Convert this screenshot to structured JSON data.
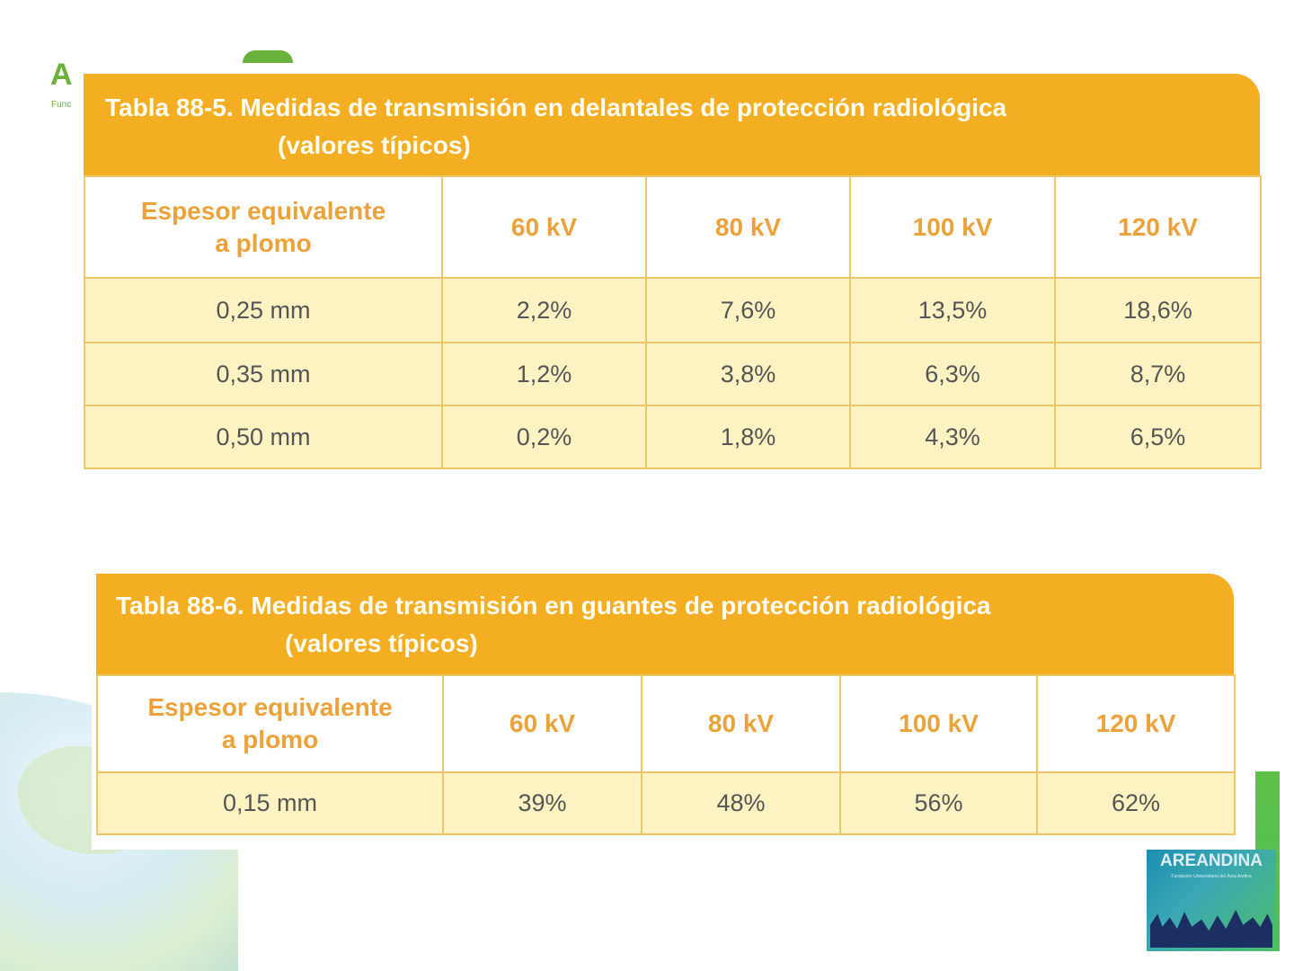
{
  "branding": {
    "top_logo_letter": "A",
    "top_logo_text": "Func",
    "bottom_logo_name": "AREANDINA",
    "bottom_logo_subtitle": "Fundación Universitaria del Área Andina"
  },
  "table1": {
    "title_line1": "Tabla 88-5.  Medidas de transmisión en delantales de protección radiológica",
    "title_line2": "(valores típicos)",
    "headers": [
      "Espesor equivalente a plomo",
      "60 kV",
      "80 kV",
      "100 kV",
      "120 kV"
    ],
    "header_first_line1": "Espesor equivalente",
    "header_first_line2": "a plomo",
    "rows": [
      [
        "0,25 mm",
        "2,2%",
        "7,6%",
        "13,5%",
        "18,6%"
      ],
      [
        "0,35 mm",
        "1,2%",
        "3,8%",
        "6,3%",
        "8,7%"
      ],
      [
        "0,50 mm",
        "0,2%",
        "1,8%",
        "4,3%",
        "6,5%"
      ]
    ]
  },
  "table2": {
    "title_line1": "Tabla 88-6.  Medidas de transmisión en guantes de protección radiológica",
    "title_line2": "(valores típicos)",
    "header_first_line1": "Espesor equivalente",
    "header_first_line2": "a plomo",
    "headers": [
      "Espesor equivalente a plomo",
      "60 kV",
      "80 kV",
      "100 kV",
      "120 kV"
    ],
    "rows": [
      [
        "0,15 mm",
        "39%",
        "48%",
        "56%",
        "62%"
      ]
    ]
  }
}
